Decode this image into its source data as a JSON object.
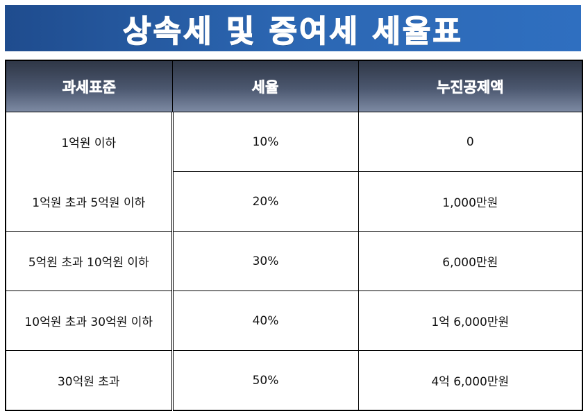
{
  "title": "상속세 및 증여세 세율표",
  "table": {
    "headers": [
      "과세표준",
      "세율",
      "누진공제액"
    ],
    "rows": [
      {
        "standard": "1억원 이하",
        "rate": "10%",
        "deduction": "0"
      },
      {
        "standard": "1억원 초과 5억원 이하",
        "rate": "20%",
        "deduction": "1,000만원"
      },
      {
        "standard": "5억원 초과 10억원 이하",
        "rate": "30%",
        "deduction": "6,000만원"
      },
      {
        "standard": "10억원 초과 30억원 이하",
        "rate": "40%",
        "deduction": "1억 6,000만원"
      },
      {
        "standard": "30억원 초과",
        "rate": "50%",
        "deduction": "4억 6,000만원"
      }
    ]
  },
  "colors": {
    "banner": "#2c67b3",
    "header_dark": "#2f3746",
    "header_light": "#7d8aa3",
    "header_text": "#ffffff"
  }
}
